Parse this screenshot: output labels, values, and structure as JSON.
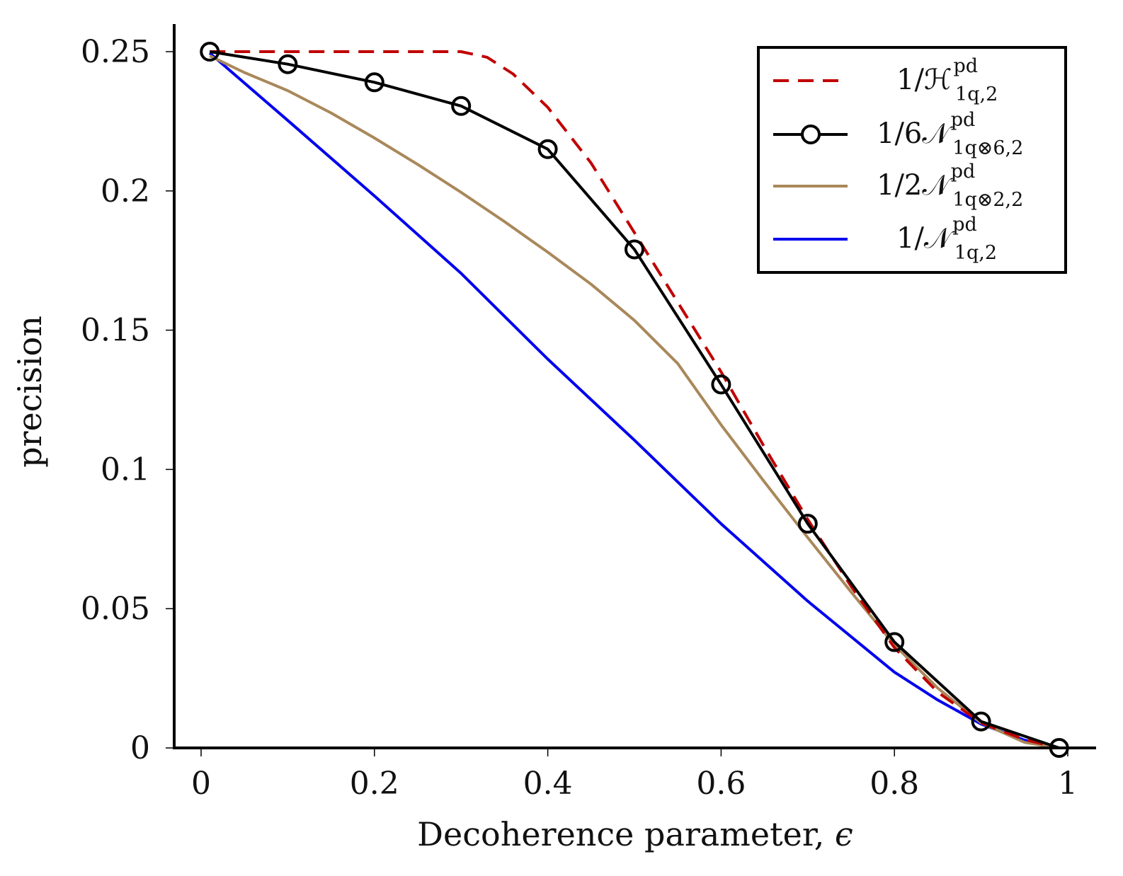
{
  "chart_data": {
    "type": "line",
    "title": "",
    "xlabel": "Decoherence parameter, ",
    "xlabel_symbol": "ϵ",
    "ylabel": "precision",
    "xlim": [
      -0.03,
      1.03
    ],
    "ylim": [
      0,
      0.26
    ],
    "xticks": [
      0,
      0.2,
      0.4,
      0.6,
      0.8,
      1
    ],
    "xtick_labels": [
      "0",
      "0.2",
      "0.4",
      "0.6",
      "0.8",
      "1"
    ],
    "yticks": [
      0,
      0.05,
      0.1,
      0.15,
      0.2,
      0.25
    ],
    "ytick_labels": [
      "0",
      "0.05",
      "0.1",
      "0.15",
      "0.2",
      "0.25"
    ],
    "grid": false,
    "legend_position": "top-right",
    "series": [
      {
        "name": "1/H_{1q,2}^{pd}",
        "legend_main": "1/ℋ",
        "legend_sup": "pd",
        "legend_sub": "1q,2",
        "color": "#c00000",
        "style": "dashed",
        "marker": "none",
        "x": [
          0.01,
          0.1,
          0.2,
          0.3,
          0.33,
          0.36,
          0.4,
          0.45,
          0.5,
          0.55,
          0.6,
          0.65,
          0.7,
          0.75,
          0.8,
          0.85,
          0.9,
          0.95,
          0.99
        ],
        "y": [
          0.25,
          0.25,
          0.25,
          0.25,
          0.248,
          0.242,
          0.23,
          0.21,
          0.185,
          0.16,
          0.135,
          0.108,
          0.082,
          0.058,
          0.036,
          0.02,
          0.009,
          0.003,
          0.0
        ]
      },
      {
        "name": "1/6N_{1q⊗6,2}^{pd}",
        "legend_main": "1/6𝒩",
        "legend_sup": "pd",
        "legend_sub": "1q⊗6,2",
        "color": "#000000",
        "style": "solid",
        "marker": "circle",
        "x": [
          0.01,
          0.1,
          0.2,
          0.3,
          0.4,
          0.5,
          0.6,
          0.7,
          0.8,
          0.9,
          0.99
        ],
        "y": [
          0.25,
          0.2455,
          0.239,
          0.2305,
          0.215,
          0.179,
          0.1305,
          0.0805,
          0.038,
          0.0095,
          0.0
        ]
      },
      {
        "name": "1/2N_{1q⊗2,2}^{pd}",
        "legend_main": "1/2𝒩",
        "legend_sup": "pd",
        "legend_sub": "1q⊗2,2",
        "color": "#a9885a",
        "style": "solid",
        "marker": "none",
        "x": [
          0.01,
          0.05,
          0.1,
          0.15,
          0.2,
          0.25,
          0.3,
          0.35,
          0.4,
          0.45,
          0.5,
          0.55,
          0.6,
          0.65,
          0.7,
          0.75,
          0.8,
          0.85,
          0.9,
          0.95,
          0.99
        ],
        "y": [
          0.2485,
          0.2425,
          0.236,
          0.228,
          0.219,
          0.2095,
          0.1995,
          0.189,
          0.178,
          0.1665,
          0.1535,
          0.138,
          0.116,
          0.0955,
          0.0755,
          0.056,
          0.037,
          0.0215,
          0.009,
          0.002,
          0.0
        ]
      },
      {
        "name": "1/N_{1q,2}^{pd}",
        "legend_main": "1/𝒩",
        "legend_sup": "pd",
        "legend_sub": "1q,2",
        "color": "#0000ee",
        "style": "solid",
        "marker": "none",
        "x": [
          0.01,
          0.1,
          0.2,
          0.3,
          0.4,
          0.5,
          0.6,
          0.7,
          0.8,
          0.85,
          0.9,
          0.95,
          0.99
        ],
        "y": [
          0.2495,
          0.2253,
          0.1982,
          0.1704,
          0.1396,
          0.1105,
          0.0805,
          0.0527,
          0.0272,
          0.0172,
          0.0086,
          0.0028,
          0.0
        ]
      }
    ]
  }
}
